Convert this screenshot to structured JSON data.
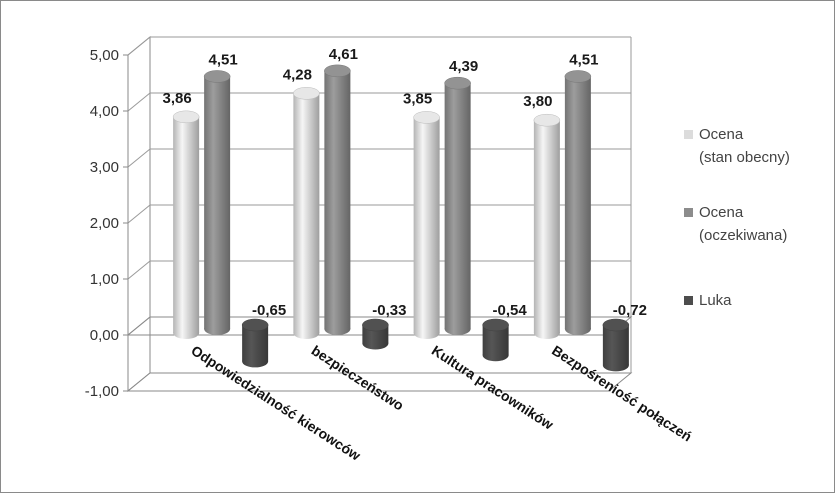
{
  "chart_data": {
    "type": "bar",
    "style": "3d-cylinder",
    "categories": [
      "Odpowiedzialność kierowców",
      "bezpieczeństwo",
      "Kultura pracowników",
      "Bezpośreniość połączeń"
    ],
    "series": [
      {
        "name": "Ocena (stan obecny)",
        "legend_lines": [
          "Ocena",
          "(stan obecny)"
        ],
        "color": "#dcdcdc",
        "values": [
          3.86,
          4.28,
          3.85,
          3.8
        ],
        "labels": [
          "3,86",
          "4,28",
          "3,85",
          "3,80"
        ]
      },
      {
        "name": "Ocena (oczekiwana)",
        "legend_lines": [
          "Ocena",
          "(oczekiwana)"
        ],
        "color": "#8c8c8c",
        "values": [
          4.51,
          4.61,
          4.39,
          4.51
        ],
        "labels": [
          "4,51",
          "4,61",
          "4,39",
          "4,51"
        ]
      },
      {
        "name": "Luka",
        "legend_lines": [
          "Luka"
        ],
        "color": "#4d4d4d",
        "values": [
          -0.65,
          -0.33,
          -0.54,
          -0.72
        ],
        "labels": [
          "-0,65",
          "-0,33",
          "-0,54",
          "-0,72"
        ]
      }
    ],
    "y_ticks": [
      -1,
      0,
      1,
      2,
      3,
      4,
      5
    ],
    "y_tick_labels": [
      "-1,00",
      "0,00",
      "1,00",
      "2,00",
      "3,00",
      "4,00",
      "5,00"
    ],
    "ylim": [
      -1,
      5
    ],
    "grid": true,
    "legend_position": "right"
  }
}
